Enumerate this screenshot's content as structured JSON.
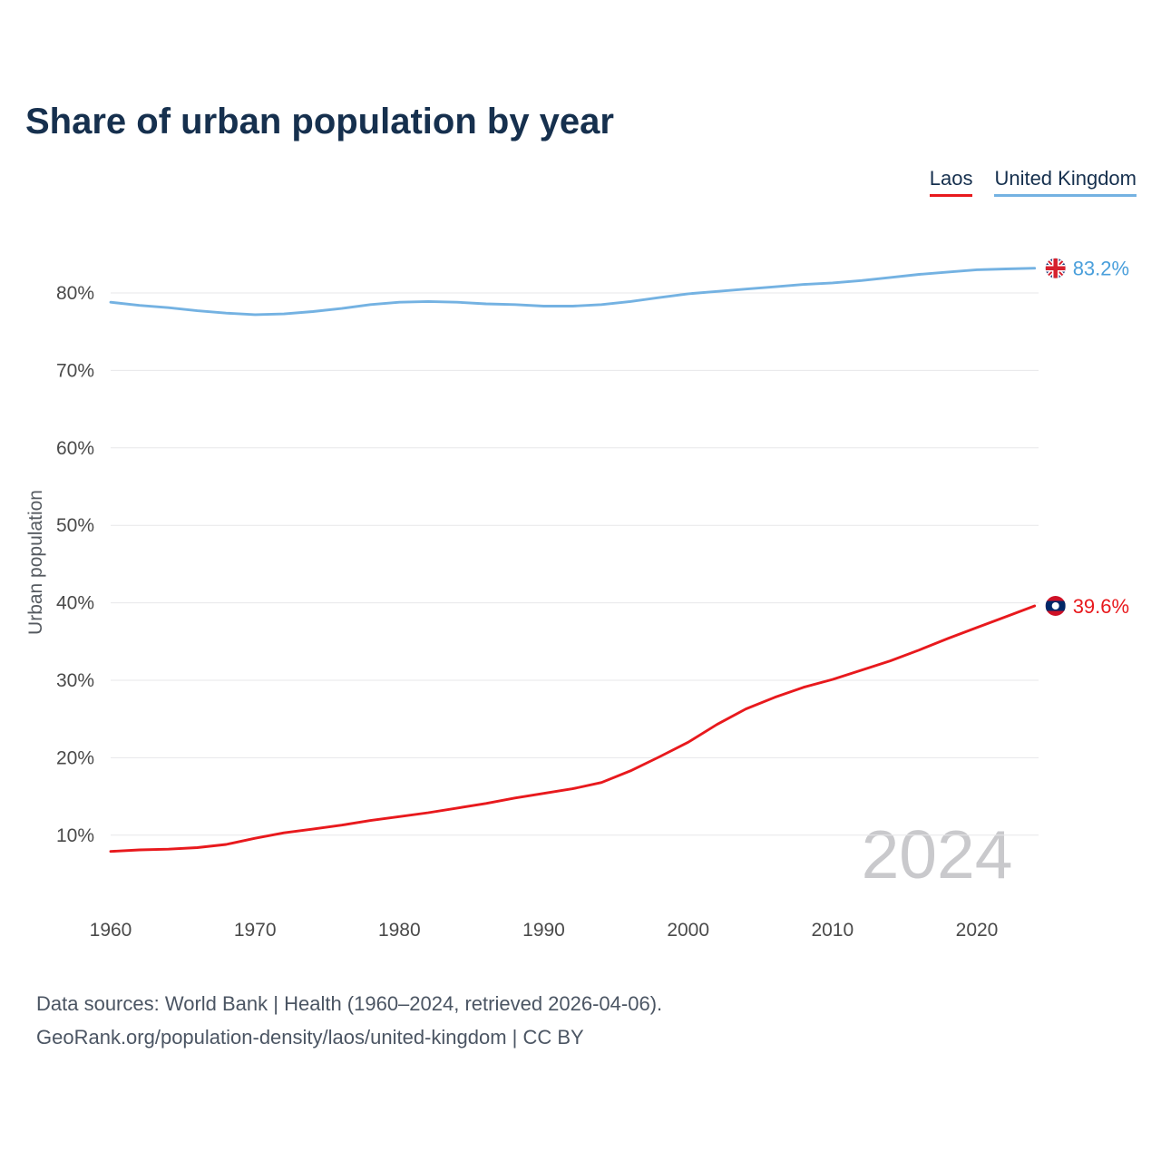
{
  "title": "Share of urban population by year",
  "legend": [
    {
      "label": "Laos",
      "color": "#e8191d"
    },
    {
      "label": "United Kingdom",
      "color": "#74b2e2"
    }
  ],
  "footer": {
    "line1": "Data sources: World Bank | Health (1960–2024, retrieved 2026-04-06).",
    "line2": "GeoRank.org/population-density/laos/united-kingdom | CC BY"
  },
  "chart_data": {
    "type": "line",
    "title": "Share of urban population by year",
    "xlabel": "",
    "ylabel": "Urban population",
    "watermark": "2024",
    "grid": "horizontal",
    "legend_position": "top-right",
    "x_range": [
      1960,
      2024
    ],
    "y_ticks": [
      10,
      20,
      30,
      40,
      50,
      60,
      70,
      80
    ],
    "x_ticks": [
      1960,
      1970,
      1980,
      1990,
      2000,
      2010,
      2020
    ],
    "x": [
      1960,
      1962,
      1964,
      1966,
      1968,
      1970,
      1972,
      1974,
      1976,
      1978,
      1980,
      1982,
      1984,
      1986,
      1988,
      1990,
      1992,
      1994,
      1996,
      1998,
      2000,
      2002,
      2004,
      2006,
      2008,
      2010,
      2012,
      2014,
      2016,
      2018,
      2020,
      2022,
      2024
    ],
    "series": [
      {
        "name": "Laos",
        "color": "#e8191d",
        "label_color": "#e8191d",
        "end_label": "39.6%",
        "end_value": 39.6,
        "values": [
          7.9,
          8.1,
          8.2,
          8.4,
          8.8,
          9.6,
          10.3,
          10.8,
          11.3,
          11.9,
          12.4,
          12.9,
          13.5,
          14.1,
          14.8,
          15.4,
          16.0,
          16.8,
          18.3,
          20.1,
          22.0,
          24.3,
          26.3,
          27.8,
          29.1,
          30.1,
          31.3,
          32.5,
          33.9,
          35.4,
          36.8,
          38.2,
          39.6
        ]
      },
      {
        "name": "United Kingdom",
        "color": "#74b2e2",
        "label_color": "#4a9fdb",
        "end_label": "83.2%",
        "end_value": 83.2,
        "values": [
          78.8,
          78.4,
          78.1,
          77.7,
          77.4,
          77.2,
          77.3,
          77.6,
          78.0,
          78.5,
          78.8,
          78.9,
          78.8,
          78.6,
          78.5,
          78.3,
          78.3,
          78.5,
          78.9,
          79.4,
          79.9,
          80.2,
          80.5,
          80.8,
          81.1,
          81.3,
          81.6,
          82.0,
          82.4,
          82.7,
          83.0,
          83.1,
          83.2
        ]
      }
    ]
  }
}
